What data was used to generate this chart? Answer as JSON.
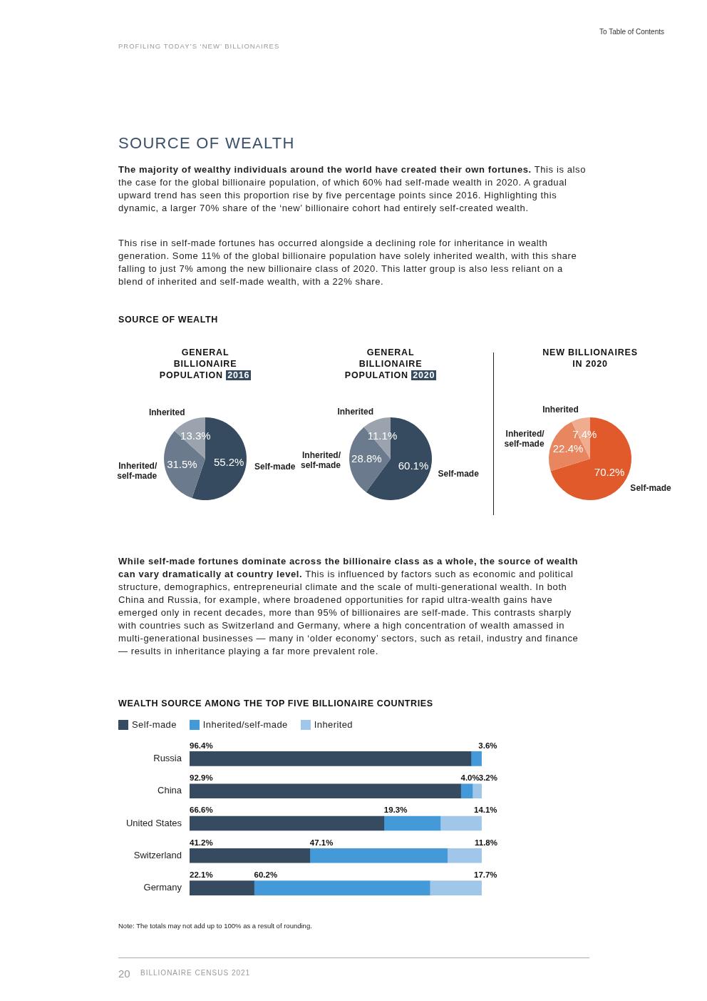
{
  "chart_data": [
    {
      "type": "other",
      "title": "SOURCE OF WEALTH",
      "annotations": [
        "PROFILING TODAY’S ‘NEW’ BILLIONAIRES",
        "To Table of Contents",
        "The majority of wealthy individuals around the world have created their own fortunes.",
        "This is also the case for the global billionaire population, of which 60% had self-made wealth in 2020. A gradual upward trend has seen this proportion rise by five percentage points since 2016. Highlighting this dynamic, a larger 70% share of the ‘new’ billionaire cohort had entirely self-created wealth.",
        "This rise in self-made fortunes has occurred alongside a declining role for inheritance in wealth generation. Some 11% of the global billionaire population have solely inherited wealth, with this share falling to just 7% among the new billionaire class of 2020. This latter group is also less reliant on a blend of inherited and self-made wealth, with a 22% share.",
        "SOURCE OF WEALTH"
      ]
    },
    {
      "type": "pie",
      "title": "GENERAL BILLIONAIRE POPULATION",
      "subtitle": "2016",
      "categories": [
        "Self-made",
        "Inherited/self-made",
        "Inherited"
      ],
      "values": [
        55.2,
        31.5,
        13.3
      ],
      "value_labels": [
        "55.2%",
        "31.5%",
        "13.3%"
      ],
      "colors": [
        "#364a60",
        "#6b7a8c",
        "#9aa3ae"
      ]
    },
    {
      "type": "pie",
      "title": "GENERAL BILLIONAIRE POPULATION",
      "subtitle": "2020",
      "categories": [
        "Self-made",
        "Inherited/self-made",
        "Inherited"
      ],
      "values": [
        60.1,
        28.8,
        11.1
      ],
      "value_labels": [
        "60.1%",
        "28.8%",
        "11.1%"
      ],
      "colors": [
        "#364a60",
        "#6b7a8c",
        "#9aa3ae"
      ]
    },
    {
      "type": "pie",
      "title": "NEW BILLIONAIRES IN 2020",
      "categories": [
        "Self-made",
        "Inherited/self-made",
        "Inherited"
      ],
      "values": [
        70.2,
        22.4,
        7.4
      ],
      "value_labels": [
        "70.2%",
        "22.4%",
        "7.4%"
      ],
      "colors": [
        "#e05a2b",
        "#e8865f",
        "#f0ac8e"
      ]
    },
    {
      "type": "other",
      "annotations": [
        "While self-made fortunes dominate across the billionaire class as a whole, the source of wealth can vary dramatically at country level.",
        "This is influenced by factors such as economic and political structure, demographics, entrepreneurial climate and the scale of multi-generational wealth. In both China and Russia, for example, where broadened opportunities for rapid ultra-wealth gains have emerged only in recent decades, more than 95% of billionaires are self-made. This contrasts sharply with countries such as Switzerland and Germany, where a high concentration of wealth amassed in multi-generational businesses — many in ‘older economy’ sectors, such as retail, industry and finance — results in inheritance playing a far more prevalent role."
      ]
    },
    {
      "type": "bar",
      "title": "WEALTH SOURCE AMONG THE TOP FIVE BILLIONAIRE COUNTRIES",
      "orientation": "horizontal",
      "stacked": true,
      "legend": "top left",
      "tick_labels": "y",
      "categories": [
        "Russia",
        "China",
        "United States",
        "Switzerland",
        "Germany"
      ],
      "series": [
        {
          "name": "Self-made",
          "color": "#364a60",
          "values": [
            96.4,
            92.9,
            66.6,
            41.2,
            22.1
          ],
          "value_labels": [
            "96.4%",
            "92.9%",
            "66.6%",
            "41.2%",
            "22.1%"
          ]
        },
        {
          "name": "Inherited/self-made",
          "color": "#4499d9",
          "values": [
            3.6,
            4.0,
            19.3,
            47.1,
            60.2
          ],
          "value_labels": [
            "3.6%",
            "4.0%",
            "19.3%",
            "47.1%",
            "60.2%"
          ]
        },
        {
          "name": "Inherited",
          "color": "#a0c6ea",
          "values": [
            null,
            3.2,
            14.1,
            11.8,
            17.7
          ],
          "value_labels": [
            null,
            "3.2%",
            "14.1%",
            "11.8%",
            "17.7%"
          ]
        }
      ],
      "annotations": [
        "Note: The totals may not add up to 100% as a result of rounding."
      ]
    },
    {
      "type": "other",
      "annotations": [
        "20",
        "BILLIONAIRE CENSUS 2021"
      ]
    }
  ]
}
